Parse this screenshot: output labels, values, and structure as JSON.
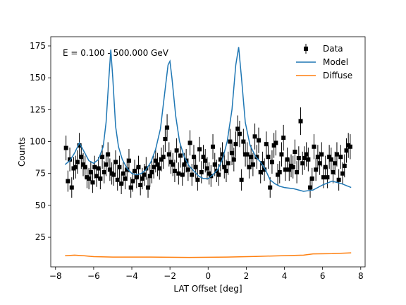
{
  "chart_data": {
    "type": "line",
    "annotation": "E = 0.100 - 500.000 GeV",
    "xlabel": "LAT Offset [deg]",
    "ylabel": "Counts",
    "xlim": [
      -8.25,
      8.23
    ],
    "ylim": [
      1.8,
      182.2
    ],
    "xticks": [
      {
        "value": -8,
        "label": "−8"
      },
      {
        "value": -6,
        "label": "−6"
      },
      {
        "value": -4,
        "label": "−4"
      },
      {
        "value": -2,
        "label": "−2"
      },
      0,
      2,
      4,
      6,
      8
    ],
    "yticks": [
      25,
      50,
      75,
      100,
      125,
      150,
      175
    ],
    "legend": "upper right",
    "series": [
      {
        "name": "Data",
        "style": "errorbar",
        "color": "#000000",
        "x": [
          -7.45,
          -7.35,
          -7.25,
          -7.15,
          -7.05,
          -6.95,
          -6.85,
          -6.75,
          -6.65,
          -6.55,
          -6.45,
          -6.35,
          -6.25,
          -6.15,
          -6.05,
          -5.95,
          -5.85,
          -5.75,
          -5.65,
          -5.55,
          -5.45,
          -5.35,
          -5.25,
          -5.15,
          -5.05,
          -4.95,
          -4.85,
          -4.75,
          -4.65,
          -4.55,
          -4.45,
          -4.35,
          -4.25,
          -4.15,
          -4.05,
          -3.95,
          -3.85,
          -3.75,
          -3.65,
          -3.55,
          -3.45,
          -3.35,
          -3.25,
          -3.15,
          -3.05,
          -2.95,
          -2.85,
          -2.75,
          -2.65,
          -2.55,
          -2.45,
          -2.35,
          -2.25,
          -2.15,
          -2.05,
          -1.95,
          -1.85,
          -1.75,
          -1.65,
          -1.55,
          -1.45,
          -1.35,
          -1.25,
          -1.15,
          -1.05,
          -0.95,
          -0.85,
          -0.75,
          -0.65,
          -0.55,
          -0.45,
          -0.35,
          -0.25,
          -0.15,
          -0.05,
          0.05,
          0.15,
          0.25,
          0.35,
          0.45,
          0.55,
          0.65,
          0.75,
          0.85,
          0.95,
          1.05,
          1.15,
          1.25,
          1.35,
          1.45,
          1.55,
          1.65,
          1.75,
          1.85,
          1.95,
          2.05,
          2.15,
          2.25,
          2.35,
          2.45,
          2.55,
          2.65,
          2.75,
          2.85,
          2.95,
          3.05,
          3.15,
          3.25,
          3.35,
          3.45,
          3.55,
          3.65,
          3.75,
          3.85,
          3.95,
          4.05,
          4.15,
          4.25,
          4.35,
          4.45,
          4.55,
          4.65,
          4.75,
          4.85,
          4.95,
          5.05,
          5.15,
          5.25,
          5.35,
          5.45,
          5.55,
          5.65,
          5.75,
          5.85,
          5.95,
          6.05,
          6.15,
          6.25,
          6.35,
          6.45,
          6.55,
          6.65,
          6.75,
          6.85,
          6.95,
          7.05,
          7.15,
          7.25,
          7.35,
          7.45
        ],
        "values": [
          95,
          69,
          86,
          64,
          79,
          80,
          84,
          97,
          88,
          82,
          80,
          72,
          71,
          76,
          68,
          80,
          73,
          79,
          71,
          88,
          76,
          82,
          90,
          78,
          75,
          74,
          84,
          70,
          80,
          67,
          75,
          71,
          78,
          85,
          64,
          69,
          77,
          72,
          80,
          66,
          71,
          74,
          79,
          64,
          73,
          76,
          80,
          85,
          82,
          79,
          86,
          88,
          102,
          111,
          90,
          84,
          82,
          77,
          93,
          75,
          89,
          74,
          82,
          85,
          78,
          99,
          74,
          88,
          80,
          70,
          94,
          76,
          88,
          85,
          79,
          75,
          73,
          96,
          82,
          77,
          74,
          86,
          90,
          80,
          77,
          83,
          100,
          91,
          86,
          98,
          110,
          106,
          70,
          100,
          90,
          90,
          80,
          88,
          82,
          104,
          88,
          101,
          76,
          83,
          78,
          98,
          88,
          64,
          84,
          97,
          99,
          74,
          76,
          90,
          103,
          78,
          86,
          78,
          81,
          80,
          92,
          76,
          87,
          116,
          83,
          87,
          90,
          86,
          64,
          71,
          96,
          78,
          88,
          83,
          90,
          72,
          80,
          72,
          88,
          86,
          76,
          83,
          90,
          70,
          88,
          75,
          81,
          93,
          97,
          96
        ],
        "errors": [
          9.7,
          8.3,
          9.3,
          8.0,
          8.9,
          8.9,
          9.2,
          9.8,
          9.4,
          9.1,
          8.9,
          8.5,
          8.4,
          8.7,
          8.2,
          8.9,
          8.5,
          8.9,
          8.4,
          9.4,
          8.7,
          9.1,
          9.5,
          8.8,
          8.7,
          8.6,
          9.2,
          8.4,
          8.9,
          8.2,
          8.7,
          8.4,
          8.8,
          9.2,
          8.0,
          8.3,
          8.8,
          8.5,
          8.9,
          8.1,
          8.4,
          8.6,
          8.9,
          8.0,
          8.5,
          8.7,
          8.9,
          9.2,
          9.1,
          8.9,
          9.3,
          9.4,
          10.1,
          10.5,
          9.5,
          9.2,
          9.1,
          8.8,
          9.6,
          8.7,
          9.4,
          8.6,
          9.1,
          9.2,
          8.8,
          9.9,
          8.6,
          9.4,
          8.9,
          8.4,
          9.7,
          8.7,
          9.4,
          9.2,
          8.9,
          8.7,
          8.5,
          9.8,
          9.1,
          8.8,
          8.6,
          9.3,
          9.5,
          8.9,
          8.8,
          9.1,
          10.0,
          9.5,
          9.3,
          9.9,
          10.5,
          10.3,
          8.4,
          10.0,
          9.5,
          9.5,
          8.9,
          9.4,
          9.1,
          10.2,
          9.4,
          10.0,
          8.7,
          9.1,
          8.8,
          9.9,
          9.4,
          8.0,
          9.2,
          9.8,
          9.9,
          8.6,
          8.7,
          9.5,
          10.1,
          8.8,
          9.3,
          8.8,
          9.0,
          8.9,
          9.6,
          8.7,
          9.3,
          10.8,
          9.1,
          9.3,
          9.5,
          9.3,
          8.0,
          8.4,
          9.8,
          8.8,
          9.4,
          9.1,
          9.5,
          8.5,
          8.9,
          8.5,
          9.4,
          9.3,
          8.7,
          9.1,
          9.5,
          8.4,
          9.4,
          8.7,
          9.0,
          9.6,
          9.8,
          9.8
        ]
      },
      {
        "name": "Model",
        "style": "line",
        "color": "#1f77b4",
        "x": [
          -7.5,
          -7.25,
          -7.0,
          -6.75,
          -6.5,
          -6.25,
          -6.0,
          -5.75,
          -5.5,
          -5.35,
          -5.2,
          -5.1,
          -5.0,
          -4.85,
          -4.7,
          -4.5,
          -4.25,
          -4.0,
          -3.75,
          -3.5,
          -3.25,
          -3.0,
          -2.75,
          -2.5,
          -2.3,
          -2.1,
          -2.0,
          -1.9,
          -1.7,
          -1.5,
          -1.25,
          -1.0,
          -0.75,
          -0.5,
          -0.25,
          0,
          0.25,
          0.5,
          0.75,
          1.0,
          1.25,
          1.45,
          1.6,
          1.75,
          1.95,
          2.2,
          2.5,
          2.75,
          3.0,
          3.25,
          3.5,
          3.75,
          4.0,
          4.5,
          5.0,
          5.5,
          6.0,
          6.5,
          7.0,
          7.5
        ],
        "values": [
          82,
          85,
          91,
          99,
          92,
          85,
          83,
          86,
          96,
          115,
          150,
          172,
          150,
          112,
          96,
          86,
          79,
          75,
          74,
          75,
          78,
          84,
          94,
          110,
          135,
          160,
          163,
          150,
          120,
          100,
          88,
          81,
          77,
          73,
          71,
          71,
          74,
          78,
          86,
          100,
          125,
          160,
          174,
          150,
          115,
          97,
          88,
          84,
          78,
          70,
          67,
          65,
          64,
          63,
          61,
          62,
          66,
          69,
          67,
          64
        ]
      },
      {
        "name": "Diffuse",
        "style": "line",
        "color": "#ff7f0e",
        "x": [
          -7.5,
          -7.0,
          -6.5,
          -6.0,
          -5.0,
          -3.0,
          -1.0,
          1.0,
          2.5,
          4.5,
          5.0,
          5.5,
          6.5,
          7.5
        ],
        "values": [
          10.5,
          11,
          10.5,
          9.8,
          9.5,
          9.5,
          9.2,
          9.5,
          10,
          10.8,
          11,
          12,
          12.2,
          12.8
        ]
      }
    ]
  }
}
